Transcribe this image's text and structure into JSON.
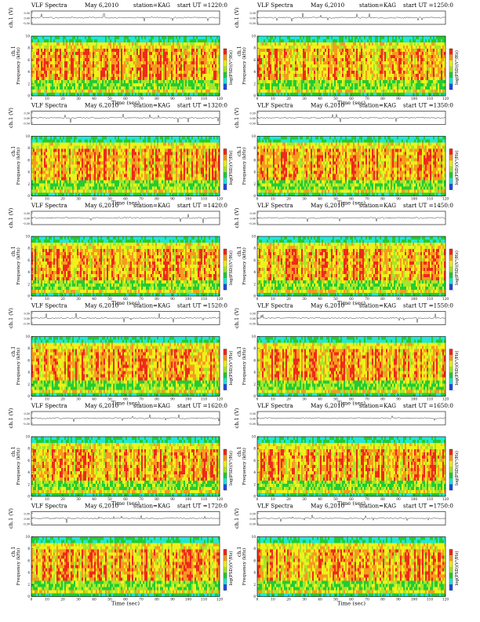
{
  "page": {
    "background": "#ffffff"
  },
  "common": {
    "title": "VLF Spectra",
    "date": "May 6,2010",
    "station": "station=KAG",
    "start_prefix": "start  UT  =",
    "amp_label": "ch.1 (V)",
    "ch_label": "ch.1",
    "freq_label": "Frequency  (kHz)",
    "time_label": "Time  (sec)",
    "cbar_label": "log(PSD)(V²/Hz)",
    "amp_ticks": [
      "0.30",
      "0.00",
      "-0.30"
    ],
    "freq_ticks": [
      "10",
      "8",
      "6",
      "4",
      "2",
      "0"
    ],
    "time_ticks": [
      "0",
      "10",
      "20",
      "30",
      "40",
      "50",
      "60",
      "70",
      "80",
      "90",
      "100",
      "110",
      "120"
    ],
    "cbar_ticks": [
      "",
      "-"
    ]
  },
  "colors": {
    "red": "#ee2a1a",
    "orange": "#f79a1e",
    "yellow": "#eef21a",
    "light_green": "#a6e62a",
    "green": "#22cc33",
    "cyan": "#1fe8d8",
    "blue": "#1f4de0"
  },
  "chart_data": [
    {
      "type": "heatmap",
      "start_ut": "1220:0",
      "xlim": [
        0,
        120
      ],
      "ylim": [
        0,
        10
      ],
      "xlabel": "Time  (sec)",
      "ylabel": "Frequency  (kHz)"
    },
    {
      "type": "heatmap",
      "start_ut": "1250:0",
      "xlim": [
        0,
        120
      ],
      "ylim": [
        0,
        10
      ],
      "xlabel": "Time  (sec)",
      "ylabel": "Frequency  (kHz)"
    },
    {
      "type": "heatmap",
      "start_ut": "1320:0",
      "xlim": [
        0,
        120
      ],
      "ylim": [
        0,
        10
      ],
      "xlabel": "Time  (sec)",
      "ylabel": "Frequency  (kHz)"
    },
    {
      "type": "heatmap",
      "start_ut": "1350:0",
      "xlim": [
        0,
        120
      ],
      "ylim": [
        0,
        10
      ],
      "xlabel": "Time  (sec)",
      "ylabel": "Frequency  (kHz)"
    },
    {
      "type": "heatmap",
      "start_ut": "1420:0",
      "xlim": [
        0,
        120
      ],
      "ylim": [
        0,
        10
      ],
      "xlabel": "Time  (sec)",
      "ylabel": "Frequency  (kHz)"
    },
    {
      "type": "heatmap",
      "start_ut": "1450:0",
      "xlim": [
        0,
        120
      ],
      "ylim": [
        0,
        10
      ],
      "xlabel": "Time  (sec)",
      "ylabel": "Frequency  (kHz)"
    },
    {
      "type": "heatmap",
      "start_ut": "1520:0",
      "xlim": [
        0,
        120
      ],
      "ylim": [
        0,
        10
      ],
      "xlabel": "Time  (sec)",
      "ylabel": "Frequency  (kHz)"
    },
    {
      "type": "heatmap",
      "start_ut": "1550:0",
      "xlim": [
        0,
        120
      ],
      "ylim": [
        0,
        10
      ],
      "xlabel": "Time  (sec)",
      "ylabel": "Frequency  (kHz)"
    },
    {
      "type": "heatmap",
      "start_ut": "1620:0",
      "xlim": [
        0,
        120
      ],
      "ylim": [
        0,
        10
      ],
      "xlabel": "Time  (sec)",
      "ylabel": "Frequency  (kHz)"
    },
    {
      "type": "heatmap",
      "start_ut": "1650:0",
      "xlim": [
        0,
        120
      ],
      "ylim": [
        0,
        10
      ],
      "xlabel": "Time  (sec)",
      "ylabel": "Frequency  (kHz)"
    },
    {
      "type": "heatmap",
      "start_ut": "1720:0",
      "xlim": [
        0,
        120
      ],
      "ylim": [
        0,
        10
      ],
      "xlabel": "Time  (sec)",
      "ylabel": "Frequency  (kHz)"
    },
    {
      "type": "heatmap",
      "start_ut": "1750:0",
      "xlim": [
        0,
        120
      ],
      "ylim": [
        0,
        10
      ],
      "xlabel": "Time  (sec)",
      "ylabel": "Frequency  (kHz)"
    }
  ]
}
